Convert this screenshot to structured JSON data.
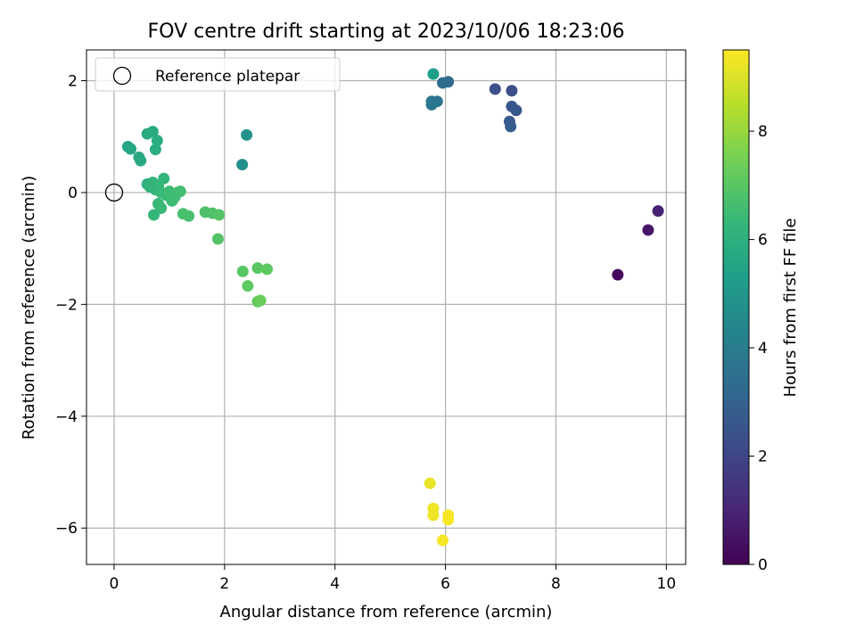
{
  "chart_data": {
    "type": "scatter",
    "title": "FOV centre drift starting at 2023/10/06 18:23:06",
    "xlabel": "Angular distance from reference (arcmin)",
    "ylabel": "Rotation from reference (arcmin)",
    "xlim": [
      -0.5,
      10.35
    ],
    "ylim": [
      -6.65,
      2.55
    ],
    "xticks": [
      0,
      2,
      4,
      6,
      8,
      10
    ],
    "yticks": [
      -6,
      -4,
      -2,
      0,
      2
    ],
    "xtick_labels": [
      "0",
      "2",
      "4",
      "6",
      "8",
      "10"
    ],
    "ytick_labels": [
      "−6",
      "−4",
      "−2",
      "0",
      "2"
    ],
    "grid": true,
    "legend": {
      "position": "top-left",
      "label": "Reference platepar"
    },
    "reference_point": {
      "x": 0,
      "y": 0
    },
    "colorbar": {
      "label": "Hours from first FF file",
      "range": [
        0,
        9.5
      ],
      "ticks": [
        0,
        2,
        4,
        6,
        8
      ],
      "tick_labels": [
        "0",
        "2",
        "4",
        "6",
        "8"
      ],
      "colormap": "viridis"
    },
    "colormap_stops": [
      "#440154",
      "#482878",
      "#3e4989",
      "#31688e",
      "#26828e",
      "#1f9e89",
      "#35b779",
      "#6ece58",
      "#b5de2b",
      "#fde725"
    ],
    "points": [
      {
        "x": 9.12,
        "y": -1.47,
        "c": 0.2
      },
      {
        "x": 9.67,
        "y": -0.67,
        "c": 0.6
      },
      {
        "x": 9.85,
        "y": -0.33,
        "c": 0.9
      },
      {
        "x": 6.9,
        "y": 1.85,
        "c": 2.3
      },
      {
        "x": 7.2,
        "y": 1.82,
        "c": 2.3
      },
      {
        "x": 7.2,
        "y": 1.54,
        "c": 2.5
      },
      {
        "x": 7.28,
        "y": 1.47,
        "c": 2.6
      },
      {
        "x": 7.16,
        "y": 1.27,
        "c": 2.7
      },
      {
        "x": 7.18,
        "y": 1.18,
        "c": 2.8
      },
      {
        "x": 6.05,
        "y": 1.98,
        "c": 3.3
      },
      {
        "x": 5.95,
        "y": 1.96,
        "c": 3.4
      },
      {
        "x": 5.85,
        "y": 1.63,
        "c": 3.6
      },
      {
        "x": 5.75,
        "y": 1.63,
        "c": 3.7
      },
      {
        "x": 5.75,
        "y": 1.57,
        "c": 3.8
      },
      {
        "x": 2.32,
        "y": 0.5,
        "c": 4.8
      },
      {
        "x": 2.4,
        "y": 1.03,
        "c": 4.9
      },
      {
        "x": 5.78,
        "y": 2.12,
        "c": 5.3
      },
      {
        "x": 0.25,
        "y": 0.82,
        "c": 5.5
      },
      {
        "x": 0.3,
        "y": 0.78,
        "c": 5.6
      },
      {
        "x": 0.45,
        "y": 0.63,
        "c": 5.7
      },
      {
        "x": 0.48,
        "y": 0.57,
        "c": 5.7
      },
      {
        "x": 0.6,
        "y": 1.05,
        "c": 5.8
      },
      {
        "x": 0.7,
        "y": 1.09,
        "c": 5.8
      },
      {
        "x": 0.78,
        "y": 0.93,
        "c": 5.9
      },
      {
        "x": 0.75,
        "y": 0.77,
        "c": 5.9
      },
      {
        "x": 0.6,
        "y": 0.15,
        "c": 6.1
      },
      {
        "x": 0.65,
        "y": 0.1,
        "c": 6.2
      },
      {
        "x": 0.7,
        "y": 0.18,
        "c": 6.2
      },
      {
        "x": 0.75,
        "y": 0.05,
        "c": 6.3
      },
      {
        "x": 0.8,
        "y": 0.12,
        "c": 6.3
      },
      {
        "x": 0.85,
        "y": 0.0,
        "c": 6.4
      },
      {
        "x": 0.9,
        "y": 0.25,
        "c": 6.3
      },
      {
        "x": 0.95,
        "y": -0.05,
        "c": 6.4
      },
      {
        "x": 1.0,
        "y": 0.02,
        "c": 6.5
      },
      {
        "x": 1.05,
        "y": -0.15,
        "c": 6.5
      },
      {
        "x": 1.1,
        "y": -0.08,
        "c": 6.5
      },
      {
        "x": 1.15,
        "y": 0.0,
        "c": 6.6
      },
      {
        "x": 1.2,
        "y": 0.02,
        "c": 6.6
      },
      {
        "x": 0.8,
        "y": -0.2,
        "c": 6.4
      },
      {
        "x": 0.85,
        "y": -0.28,
        "c": 6.4
      },
      {
        "x": 0.72,
        "y": -0.4,
        "c": 6.3
      },
      {
        "x": 1.25,
        "y": -0.38,
        "c": 6.7
      },
      {
        "x": 1.35,
        "y": -0.42,
        "c": 6.7
      },
      {
        "x": 1.65,
        "y": -0.35,
        "c": 6.8
      },
      {
        "x": 1.78,
        "y": -0.37,
        "c": 6.8
      },
      {
        "x": 1.9,
        "y": -0.4,
        "c": 6.9
      },
      {
        "x": 1.88,
        "y": -0.83,
        "c": 6.9
      },
      {
        "x": 2.33,
        "y": -1.41,
        "c": 7.0
      },
      {
        "x": 2.6,
        "y": -1.35,
        "c": 7.0
      },
      {
        "x": 2.77,
        "y": -1.37,
        "c": 7.1
      },
      {
        "x": 2.42,
        "y": -1.67,
        "c": 7.1
      },
      {
        "x": 2.6,
        "y": -1.95,
        "c": 7.2
      },
      {
        "x": 2.65,
        "y": -1.93,
        "c": 7.3
      },
      {
        "x": 5.72,
        "y": -5.2,
        "c": 9.2
      },
      {
        "x": 5.78,
        "y": -5.65,
        "c": 9.3
      },
      {
        "x": 5.78,
        "y": -5.77,
        "c": 9.3
      },
      {
        "x": 6.05,
        "y": -5.77,
        "c": 9.4
      },
      {
        "x": 6.05,
        "y": -5.85,
        "c": 9.4
      },
      {
        "x": 5.95,
        "y": -6.22,
        "c": 9.4
      }
    ]
  }
}
